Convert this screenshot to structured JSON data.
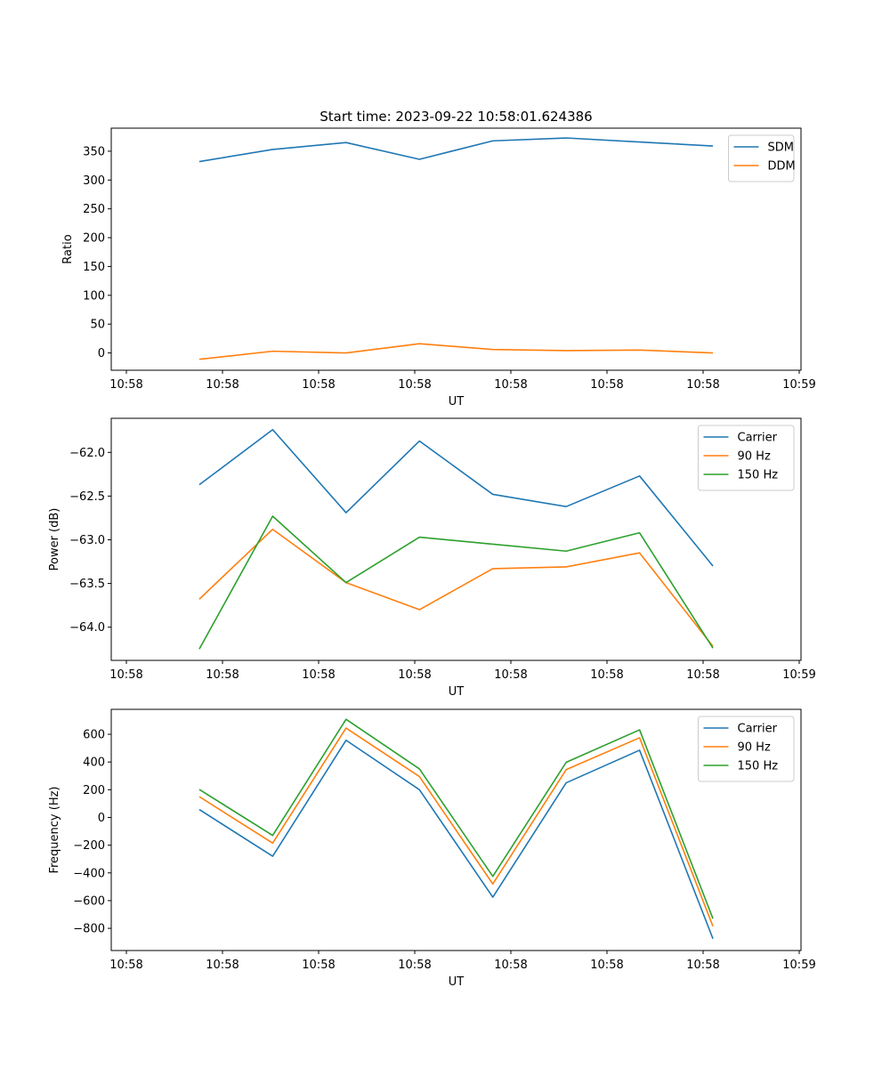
{
  "figure_title": "Start time: 2023-09-22 10:58:01.624386",
  "colors": {
    "blue": "#1f77b4",
    "orange": "#ff7f0e",
    "green": "#2ca02c"
  },
  "chart_data": [
    {
      "type": "line",
      "title": "Start time: 2023-09-22 10:58:01.624386",
      "xlabel": "UT",
      "ylabel": "Ratio",
      "legend_position": "top-right",
      "x_tick_labels": [
        "10:58",
        "10:58",
        "10:58",
        "10:58",
        "10:58",
        "10:58",
        "10:58",
        "10:59"
      ],
      "y_ticks": [
        0,
        50,
        100,
        150,
        200,
        250,
        300,
        350
      ],
      "y_tick_labels": [
        "0",
        "50",
        "100",
        "150",
        "200",
        "250",
        "300",
        "350"
      ],
      "ylim": [
        -30,
        390
      ],
      "x": [
        1,
        2,
        3,
        4,
        5,
        6,
        7,
        8
      ],
      "xlim": [
        -0.2,
        9.2
      ],
      "series": [
        {
          "name": "SDM",
          "color": "#1f77b4",
          "values": [
            332,
            353,
            365,
            336,
            368,
            373,
            366,
            359
          ]
        },
        {
          "name": "DDM",
          "color": "#ff7f0e",
          "values": [
            -11,
            3,
            0,
            16,
            6,
            4,
            5,
            0
          ]
        }
      ]
    },
    {
      "type": "line",
      "title": "",
      "xlabel": "UT",
      "ylabel": "Power (dB)",
      "legend_position": "top-right",
      "x_tick_labels": [
        "10:58",
        "10:58",
        "10:58",
        "10:58",
        "10:58",
        "10:58",
        "10:58",
        "10:59"
      ],
      "y_ticks": [
        -64.0,
        -63.5,
        -63.0,
        -62.5,
        -62.0
      ],
      "y_tick_labels": [
        "−64.0",
        "−63.5",
        "−63.0",
        "−62.5",
        "−62.0"
      ],
      "ylim": [
        -64.38,
        -61.61
      ],
      "x": [
        1,
        2,
        3,
        4,
        5,
        6,
        7,
        8
      ],
      "xlim": [
        -0.2,
        9.2
      ],
      "series": [
        {
          "name": "Carrier",
          "color": "#1f77b4",
          "values": [
            -62.37,
            -61.74,
            -62.69,
            -61.87,
            -62.48,
            -62.62,
            -62.27,
            -63.3
          ]
        },
        {
          "name": "90 Hz",
          "color": "#ff7f0e",
          "values": [
            -63.68,
            -62.88,
            -63.49,
            -63.8,
            -63.33,
            -63.31,
            -63.15,
            -64.22
          ]
        },
        {
          "name": "150 Hz",
          "color": "#2ca02c",
          "values": [
            -64.25,
            -62.73,
            -63.49,
            -62.97,
            -63.05,
            -63.13,
            -62.92,
            -64.24
          ]
        }
      ]
    },
    {
      "type": "line",
      "title": "",
      "xlabel": "UT",
      "ylabel": "Frequency (Hz)",
      "legend_position": "top-right",
      "x_tick_labels": [
        "10:58",
        "10:58",
        "10:58",
        "10:58",
        "10:58",
        "10:58",
        "10:58",
        "10:59"
      ],
      "y_ticks": [
        -800,
        -600,
        -400,
        -200,
        0,
        200,
        400,
        600
      ],
      "y_tick_labels": [
        "−800",
        "−600",
        "−400",
        "−200",
        "0",
        "200",
        "400",
        "600"
      ],
      "ylim": [
        -960,
        780
      ],
      "x": [
        1,
        2,
        3,
        4,
        5,
        6,
        7,
        8
      ],
      "xlim": [
        -0.2,
        9.2
      ],
      "series": [
        {
          "name": "Carrier",
          "color": "#1f77b4",
          "values": [
            57,
            -280,
            557,
            200,
            -575,
            250,
            485,
            -875
          ]
        },
        {
          "name": "90 Hz",
          "color": "#ff7f0e",
          "values": [
            150,
            -185,
            645,
            295,
            -480,
            345,
            575,
            -785
          ]
        },
        {
          "name": "150 Hz",
          "color": "#2ca02c",
          "values": [
            202,
            -130,
            708,
            350,
            -425,
            398,
            632,
            -730
          ]
        }
      ]
    }
  ]
}
